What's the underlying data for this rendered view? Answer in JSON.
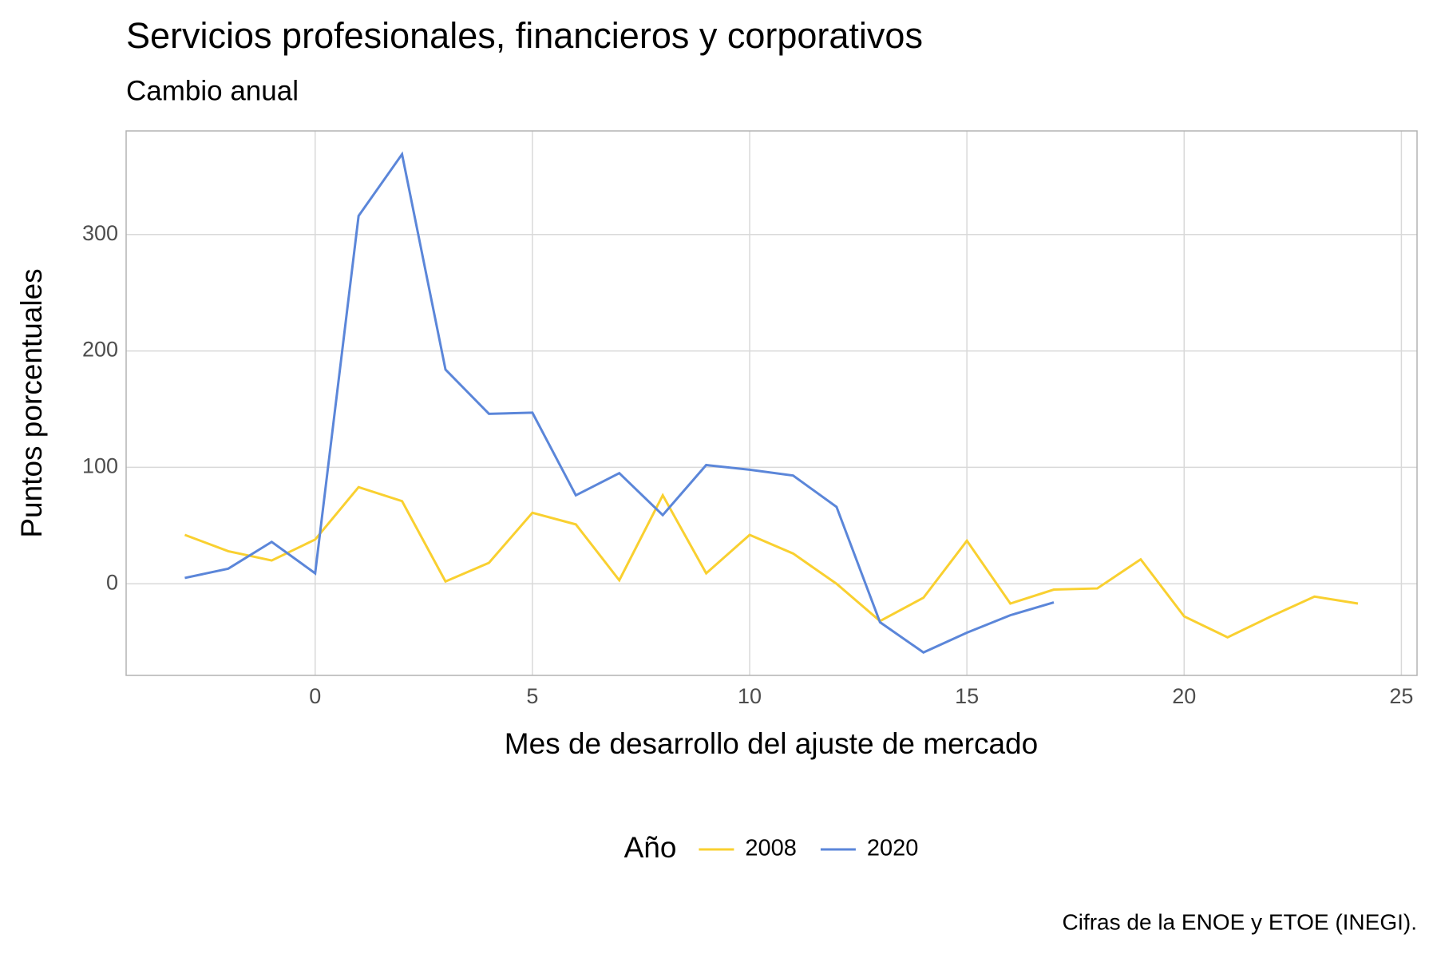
{
  "chart_data": {
    "type": "line",
    "title": "Servicios profesionales, financieros y corporativos",
    "subtitle": "Cambio anual",
    "x_label": "Mes de desarrollo del ajuste de mercado",
    "y_label": "Puntos porcentuales",
    "legend_title": "Año",
    "caption": "Cifras de la ENOE y ETOE (INEGI).",
    "legend_position": "bottom",
    "grid": true,
    "xlim": [
      -4.35,
      25.36
    ],
    "ylim": [
      -78.7,
      389
    ],
    "xticks": [
      0,
      5,
      10,
      15,
      20,
      25
    ],
    "yticks": [
      0,
      100,
      200,
      300
    ],
    "series": [
      {
        "name": "2008",
        "color": "#f9d030",
        "x": [
          -3,
          -2,
          -1,
          0,
          1,
          2,
          3,
          4,
          5,
          6,
          7,
          8,
          9,
          10,
          11,
          12,
          13,
          14,
          15,
          16,
          17,
          18,
          19,
          20,
          21,
          22,
          23,
          24
        ],
        "values": [
          42,
          28,
          20,
          38,
          83,
          71,
          2,
          18,
          61,
          51,
          3,
          76,
          9,
          42,
          26,
          0,
          -32,
          -12,
          37,
          -17,
          -5,
          -4,
          21,
          -28,
          -46,
          -28,
          -11,
          -17
        ]
      },
      {
        "name": "2020",
        "color": "#5b86d9",
        "x": [
          -3,
          -2,
          -1,
          0,
          1,
          2,
          3,
          4,
          5,
          6,
          7,
          8,
          9,
          10,
          11,
          12,
          13,
          14,
          15,
          16,
          17
        ],
        "values": [
          5,
          13,
          36,
          9,
          316,
          369,
          184,
          146,
          147,
          76,
          95,
          59,
          102,
          98,
          93,
          66,
          -33,
          -59,
          -42,
          -27,
          -16
        ]
      }
    ]
  }
}
